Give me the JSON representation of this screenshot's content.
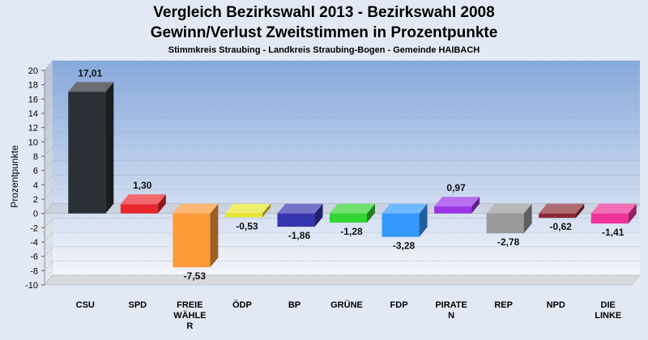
{
  "chart_data": {
    "type": "bar",
    "title": "Vergleich Bezirkswahl 2013 - Bezirkswahl 2008",
    "subtitle": "Gewinn/Verlust Zweitstimmen in Prozentpunkte",
    "subtitle2": "Stimmkreis Straubing - Landkreis Straubing-Bogen - Gemeinde HAIBACH",
    "ylabel": "Prozentpunkte",
    "ylim": [
      -10,
      20
    ],
    "ytick_step": 2,
    "grid": true,
    "categories": [
      [
        "CSU"
      ],
      [
        "SPD"
      ],
      [
        "FREIE",
        "WÄHLE",
        "R"
      ],
      [
        "ÖDP"
      ],
      [
        "BP"
      ],
      [
        "GRÜNE"
      ],
      [
        "FDP"
      ],
      [
        "PIRATE",
        "N"
      ],
      [
        "REP"
      ],
      [
        "NPD"
      ],
      [
        "DIE",
        "LINKE"
      ]
    ],
    "values": [
      17.01,
      1.3,
      -7.53,
      -0.53,
      -1.86,
      -1.28,
      -3.28,
      0.97,
      -2.78,
      -0.62,
      -1.41
    ],
    "value_labels": [
      "17,01",
      "1,30",
      "-7,53",
      "-0,53",
      "-1,86",
      "-1,28",
      "-3,28",
      "0,97",
      "-2,78",
      "-0,62",
      "-1,41"
    ],
    "colors": [
      "#2b2f36",
      "#e8272c",
      "#ff9a38",
      "#e6e62b",
      "#3535b0",
      "#33d433",
      "#3399ff",
      "#9933e6",
      "#999999",
      "#8c2a36",
      "#ee3399"
    ]
  }
}
